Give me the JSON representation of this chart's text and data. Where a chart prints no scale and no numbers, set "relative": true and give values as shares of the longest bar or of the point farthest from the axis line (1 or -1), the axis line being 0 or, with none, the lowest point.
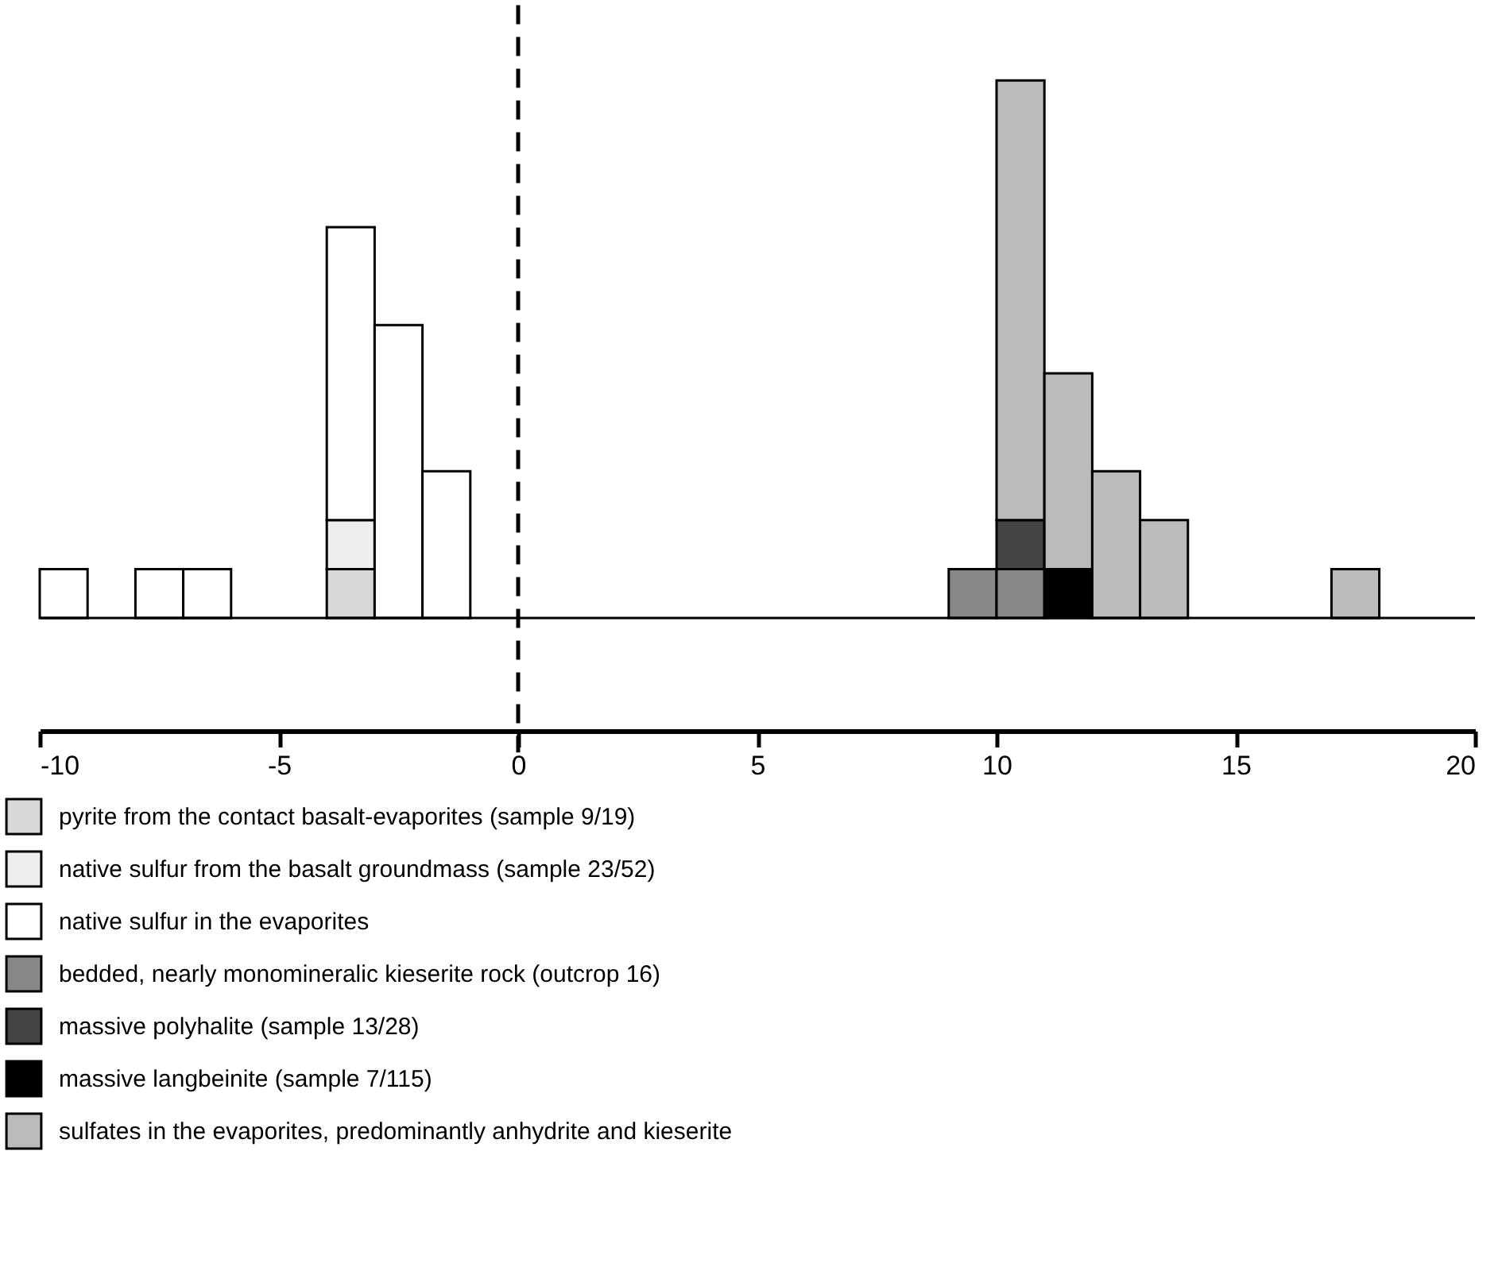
{
  "chart_data": {
    "type": "bar",
    "relative": true,
    "stacked": true,
    "x": [
      -9.5,
      -8.5,
      -7.5,
      -6.5,
      -5.5,
      -4.5,
      -3.5,
      -2.5,
      -1.5,
      -0.5,
      0.5,
      1.5,
      2.5,
      3.5,
      4.5,
      5.5,
      6.5,
      7.5,
      8.5,
      9.5,
      10.5,
      11.5,
      12.5,
      13.5,
      14.5,
      15.5,
      16.5,
      17.5
    ],
    "series": [
      {
        "name": "pyrite from the contact basalt-evaporites (sample 9/19)",
        "color": "#d8d8d8",
        "values": [
          null,
          null,
          null,
          null,
          null,
          null,
          0.091,
          null,
          null,
          null,
          null,
          null,
          null,
          null,
          null,
          null,
          null,
          null,
          null,
          null,
          null,
          null,
          null,
          null,
          null,
          null,
          null,
          null
        ]
      },
      {
        "name": "native sulfur from the basalt groundmass (sample 23/52)",
        "color": "#eeeeee",
        "values": [
          null,
          null,
          null,
          null,
          null,
          null,
          0.091,
          null,
          null,
          null,
          null,
          null,
          null,
          null,
          null,
          null,
          null,
          null,
          null,
          null,
          null,
          null,
          null,
          null,
          null,
          null,
          null,
          null
        ]
      },
      {
        "name": "native sulfur in the evaporites",
        "color": "#ffffff",
        "values": [
          0.091,
          null,
          0.091,
          0.091,
          null,
          null,
          0.545,
          0.545,
          0.273,
          null,
          null,
          null,
          null,
          null,
          null,
          null,
          null,
          null,
          null,
          null,
          null,
          null,
          null,
          null,
          null,
          null,
          null,
          null
        ]
      },
      {
        "name": "bedded, nearly monomineralic kieserite rock (outcrop 16)",
        "color": "#888888",
        "values": [
          null,
          null,
          null,
          null,
          null,
          null,
          null,
          null,
          null,
          null,
          null,
          null,
          null,
          null,
          null,
          null,
          null,
          null,
          null,
          0.091,
          0.091,
          null,
          null,
          null,
          null,
          null,
          null,
          null
        ]
      },
      {
        "name": "massive polyhalite (sample 13/28)",
        "color": "#444444",
        "values": [
          null,
          null,
          null,
          null,
          null,
          null,
          null,
          null,
          null,
          null,
          null,
          null,
          null,
          null,
          null,
          null,
          null,
          null,
          null,
          null,
          0.091,
          null,
          null,
          null,
          null,
          null,
          null,
          null
        ]
      },
      {
        "name": "massive langbeinite (sample 7/115)",
        "color": "#000000",
        "values": [
          null,
          null,
          null,
          null,
          null,
          null,
          null,
          null,
          null,
          null,
          null,
          null,
          null,
          null,
          null,
          null,
          null,
          null,
          null,
          null,
          null,
          0.091,
          null,
          null,
          null,
          null,
          null,
          null
        ]
      },
      {
        "name": "sulfates in the evaporites, predominantly anhydrite and kieserite",
        "color": "#bbbbbb",
        "values": [
          null,
          null,
          null,
          null,
          null,
          null,
          null,
          null,
          null,
          null,
          null,
          null,
          null,
          null,
          null,
          null,
          null,
          null,
          null,
          null,
          0.818,
          0.364,
          0.273,
          0.182,
          null,
          null,
          null,
          0.091
        ]
      }
    ],
    "xlim": [
      -10,
      20
    ],
    "xticks": [
      -10,
      -5,
      0,
      5,
      10,
      15,
      20
    ],
    "ref_lines": [
      {
        "axis": "x",
        "value": 0,
        "line_style": "dashed"
      }
    ],
    "legend": "bottom left"
  }
}
